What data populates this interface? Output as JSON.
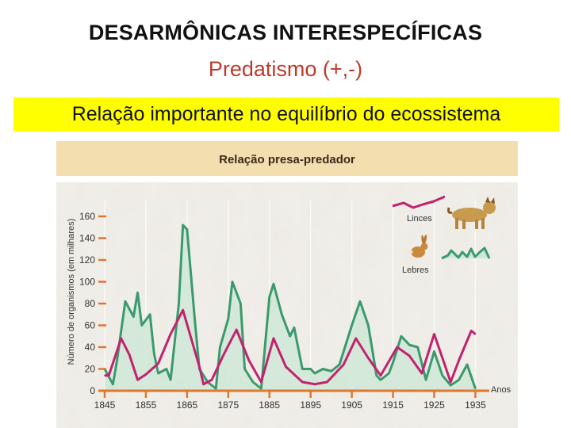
{
  "slide": {
    "title": "DESARMÔNICAS INTERESPECÍFICAS",
    "subtitle": "Predatismo (+,-)",
    "highlight": "Relação importante no equilíbrio do ecossistema"
  },
  "colors": {
    "subtitle": "#c0392b",
    "highlight_bg": "#ffff00",
    "panel_header": "#f3deaf",
    "lynx_line": "#c2236e",
    "hare_line": "#3a9a6e",
    "hare_fill": "#cfe7d6",
    "axis_ticks": "#e0772f"
  },
  "icons": {
    "lynx": "lynx-icon",
    "hare": "hare-icon"
  },
  "chart_data": {
    "type": "line",
    "title": "Relação presa-predador",
    "xlabel": "Anos",
    "ylabel": "Número de organismos (em milhares)",
    "xlim": [
      1845,
      1938
    ],
    "ylim": [
      0,
      160
    ],
    "xticks": [
      1845,
      1855,
      1865,
      1875,
      1885,
      1895,
      1905,
      1915,
      1925,
      1935
    ],
    "yticks": [
      0,
      20,
      40,
      60,
      80,
      100,
      120,
      140,
      160
    ],
    "legend_position": "top-right",
    "series": [
      {
        "name": "Linces",
        "color": "#c2236e",
        "x": [
          1845,
          1846,
          1849,
          1851,
          1853,
          1855,
          1858,
          1861,
          1864,
          1866,
          1868,
          1869,
          1871,
          1874,
          1877,
          1880,
          1883,
          1886,
          1889,
          1893,
          1896,
          1899,
          1903,
          1906,
          1909,
          1912,
          1916,
          1919,
          1922,
          1925,
          1929,
          1931,
          1934,
          1935
        ],
        "y": [
          14,
          14,
          48,
          33,
          10,
          15,
          25,
          52,
          74,
          48,
          22,
          6,
          10,
          34,
          56,
          28,
          8,
          48,
          22,
          8,
          6,
          8,
          24,
          48,
          30,
          14,
          40,
          32,
          16,
          52,
          8,
          28,
          55,
          52
        ]
      },
      {
        "name": "Lebres",
        "color": "#3a9a6e",
        "x": [
          1845,
          1847,
          1848,
          1850,
          1852,
          1853,
          1854,
          1856,
          1857,
          1858,
          1860,
          1861,
          1863,
          1864,
          1865,
          1867,
          1868,
          1870,
          1872,
          1873,
          1875,
          1876,
          1878,
          1879,
          1881,
          1883,
          1885,
          1886,
          1888,
          1890,
          1891,
          1893,
          1895,
          1896,
          1898,
          1900,
          1902,
          1905,
          1907,
          1909,
          1911,
          1912,
          1914,
          1915,
          1917,
          1919,
          1921,
          1923,
          1925,
          1927,
          1929,
          1931,
          1933,
          1935
        ],
        "y": [
          20,
          6,
          28,
          82,
          68,
          90,
          60,
          70,
          34,
          16,
          20,
          10,
          80,
          152,
          148,
          60,
          20,
          8,
          2,
          40,
          66,
          100,
          80,
          20,
          8,
          2,
          86,
          98,
          70,
          50,
          58,
          20,
          20,
          16,
          20,
          18,
          24,
          60,
          82,
          60,
          14,
          10,
          16,
          26,
          50,
          42,
          40,
          10,
          36,
          14,
          5,
          10,
          24,
          2
        ]
      }
    ]
  }
}
